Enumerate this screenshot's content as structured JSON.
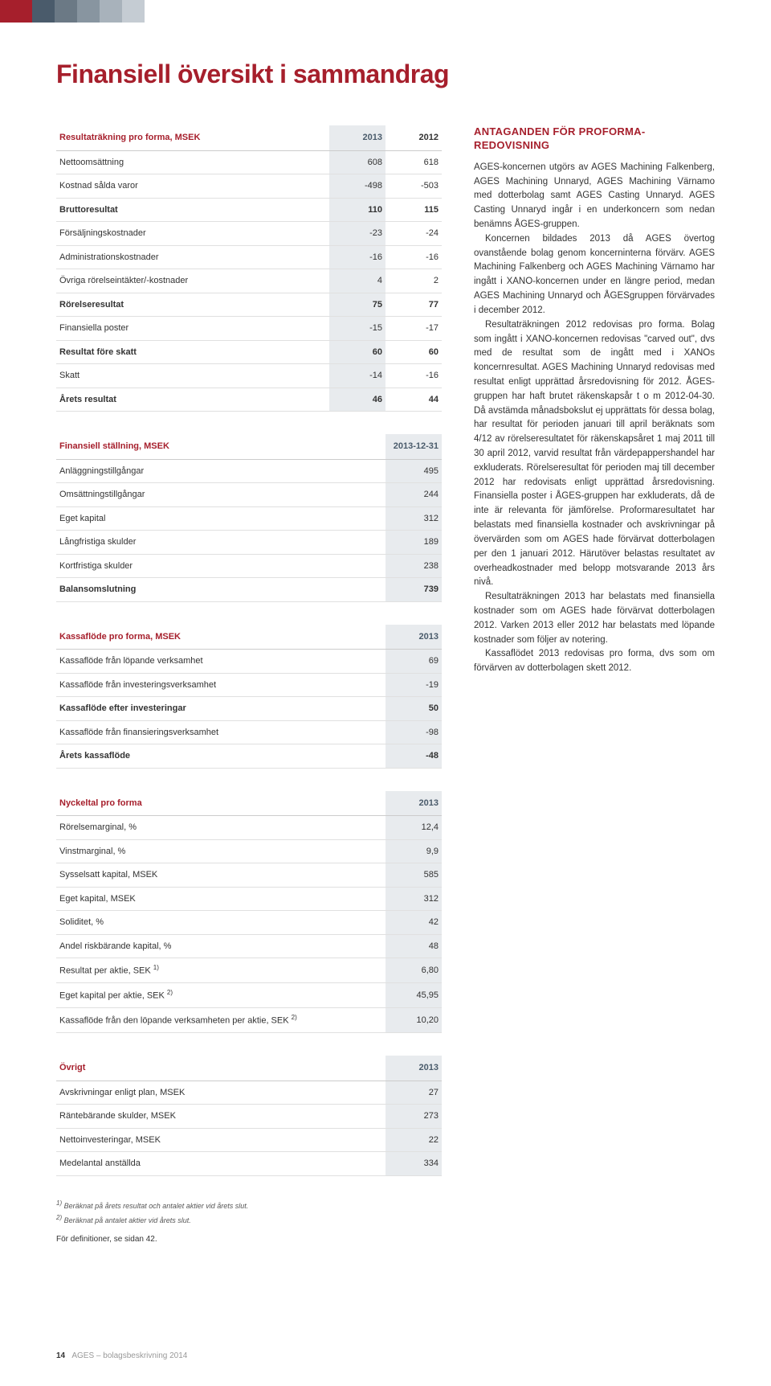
{
  "colors": {
    "accent": "#a61f2c",
    "header_bg": "#e8ebee",
    "text": "#333333",
    "border": "#e0e0e0"
  },
  "page_title": "Finansiell översikt i sammandrag",
  "table1": {
    "title": "Resultaträkning pro forma, MSEK",
    "cols": [
      "2013",
      "2012"
    ],
    "rows": [
      {
        "l": "Nettoomsättning",
        "v": [
          "608",
          "618"
        ]
      },
      {
        "l": "Kostnad sålda varor",
        "v": [
          "-498",
          "-503"
        ]
      },
      {
        "l": "Bruttoresultat",
        "v": [
          "110",
          "115"
        ],
        "bold": true
      },
      {
        "l": "Försäljningskostnader",
        "v": [
          "-23",
          "-24"
        ]
      },
      {
        "l": "Administrationskostnader",
        "v": [
          "-16",
          "-16"
        ]
      },
      {
        "l": "Övriga rörelseintäkter/-kostnader",
        "v": [
          "4",
          "2"
        ]
      },
      {
        "l": "Rörelseresultat",
        "v": [
          "75",
          "77"
        ],
        "bold": true
      },
      {
        "l": "Finansiella poster",
        "v": [
          "-15",
          "-17"
        ]
      },
      {
        "l": "Resultat före skatt",
        "v": [
          "60",
          "60"
        ],
        "bold": true
      },
      {
        "l": "Skatt",
        "v": [
          "-14",
          "-16"
        ]
      },
      {
        "l": "Årets resultat",
        "v": [
          "46",
          "44"
        ],
        "bold": true
      }
    ]
  },
  "table2": {
    "title": "Finansiell ställning, MSEK",
    "cols": [
      "2013-12-31"
    ],
    "rows": [
      {
        "l": "Anläggningstillgångar",
        "v": [
          "495"
        ]
      },
      {
        "l": "Omsättningstillgångar",
        "v": [
          "244"
        ]
      },
      {
        "l": "Eget kapital",
        "v": [
          "312"
        ]
      },
      {
        "l": "Långfristiga skulder",
        "v": [
          "189"
        ]
      },
      {
        "l": "Kortfristiga skulder",
        "v": [
          "238"
        ]
      },
      {
        "l": "Balansomslutning",
        "v": [
          "739"
        ],
        "bold": true
      }
    ]
  },
  "table3": {
    "title": "Kassaflöde pro forma, MSEK",
    "cols": [
      "2013"
    ],
    "rows": [
      {
        "l": "Kassaflöde från löpande verksamhet",
        "v": [
          "69"
        ]
      },
      {
        "l": "Kassaflöde från investeringsverksamhet",
        "v": [
          "-19"
        ]
      },
      {
        "l": "Kassaflöde efter investeringar",
        "v": [
          "50"
        ],
        "bold": true
      },
      {
        "l": "Kassaflöde från finansieringsverksamhet",
        "v": [
          "-98"
        ]
      },
      {
        "l": "Årets kassaflöde",
        "v": [
          "-48"
        ],
        "bold": true
      }
    ]
  },
  "table4": {
    "title": "Nyckeltal pro forma",
    "cols": [
      "2013"
    ],
    "rows": [
      {
        "l": "Rörelsemarginal, %",
        "v": [
          "12,4"
        ]
      },
      {
        "l": "Vinstmarginal, %",
        "v": [
          "9,9"
        ]
      },
      {
        "l": "Sysselsatt kapital, MSEK",
        "v": [
          "585"
        ]
      },
      {
        "l": "Eget kapital, MSEK",
        "v": [
          "312"
        ]
      },
      {
        "l": "Soliditet, %",
        "v": [
          "42"
        ]
      },
      {
        "l": "Andel riskbärande kapital, %",
        "v": [
          "48"
        ]
      },
      {
        "l": "Resultat per aktie, SEK",
        "sup": "1)",
        "v": [
          "6,80"
        ]
      },
      {
        "l": "Eget kapital per aktie, SEK",
        "sup": "2)",
        "v": [
          "45,95"
        ]
      },
      {
        "l": "Kassaflöde från den löpande verksamheten per aktie, SEK",
        "sup": "2)",
        "v": [
          "10,20"
        ]
      }
    ]
  },
  "table5": {
    "title": "Övrigt",
    "cols": [
      "2013"
    ],
    "rows": [
      {
        "l": "Avskrivningar enligt plan, MSEK",
        "v": [
          "27"
        ]
      },
      {
        "l": "Räntebärande skulder, MSEK",
        "v": [
          "273"
        ]
      },
      {
        "l": "Nettoinvesteringar, MSEK",
        "v": [
          "22"
        ]
      },
      {
        "l": "Medelantal anställda",
        "v": [
          "334"
        ]
      }
    ]
  },
  "footnote1": "Beräknat på årets resultat och antalet aktier vid årets slut.",
  "footnote2": "Beräknat på antalet aktier vid årets slut.",
  "defs": "För definitioner, se sidan 42.",
  "right_heading": "ANTAGANDEN FÖR PROFORMA­REDOVISNING",
  "paragraphs": [
    "AGES-koncernen utgörs av AGES Machining Falkenberg, AGES Machining Unnaryd, AGES Machining Värnamo med dotterbolag samt AGES Casting Unnaryd. AGES Casting Unnaryd ingår i en underkoncern som nedan benämns ÅGES-gruppen.",
    "Koncernen bildades 2013 då AGES övertog ovanstående bolag genom koncern­interna förvärv. AGES Machining Falkenberg och AGES Machining Värnamo har ingått i XANO-koncernen under en längre period, medan AGES Machining Unnaryd och ÅGES­gruppen förvärvades i december 2012.",
    "Resultaträkningen 2012 redovisas pro forma. Bolag som ingått i XANO-koncernen redovisas \"carved out\", dvs med de resultat som de ingått med i XANOs koncernresultat. AGES Machining Unnaryd redovisas med resultat enligt upprättad årsredovisning för 2012. ÅGES-gruppen har haft brutet räkenskapsår t o m 2012-04-30. Då avstämda månadsbokslut ej upprättats för dessa bolag, har resultat för perioden januari till april beräknats som 4/12 av rörelseresultatet för räkenskapsåret 1 maj 2011 till 30 april 2012, varvid resultat från värdepappershandel har exkluderats. Rörelseresultat för perioden maj till december 2012 har redovisats enligt upprättad årsredovisning. Finansiella poster i ÅGES-gruppen har exkluderats, då de inte är relevanta för jämförelse. Proformaresultatet har belastats med finansiella kostnader och avskrivningar på övervärden som om AGES hade förvärvat dotterbolagen per den 1 januari 2012. Härutöver belastas resultatet av overheadkostnader med belopp motsvarande 2013 års nivå.",
    "Resultaträkningen 2013 har belastats med finansiella kostnader som om AGES hade förvärvat dotterbolagen 2012. Varken 2013 eller 2012 har belastats med löpande kostnader som följer av notering.",
    "Kassaflödet 2013 redovisas pro forma, dvs som om förvärven av dotterbolagen skett 2012."
  ],
  "footer_page": "14",
  "footer_text": "AGES – bolagsbeskrivning 2014"
}
